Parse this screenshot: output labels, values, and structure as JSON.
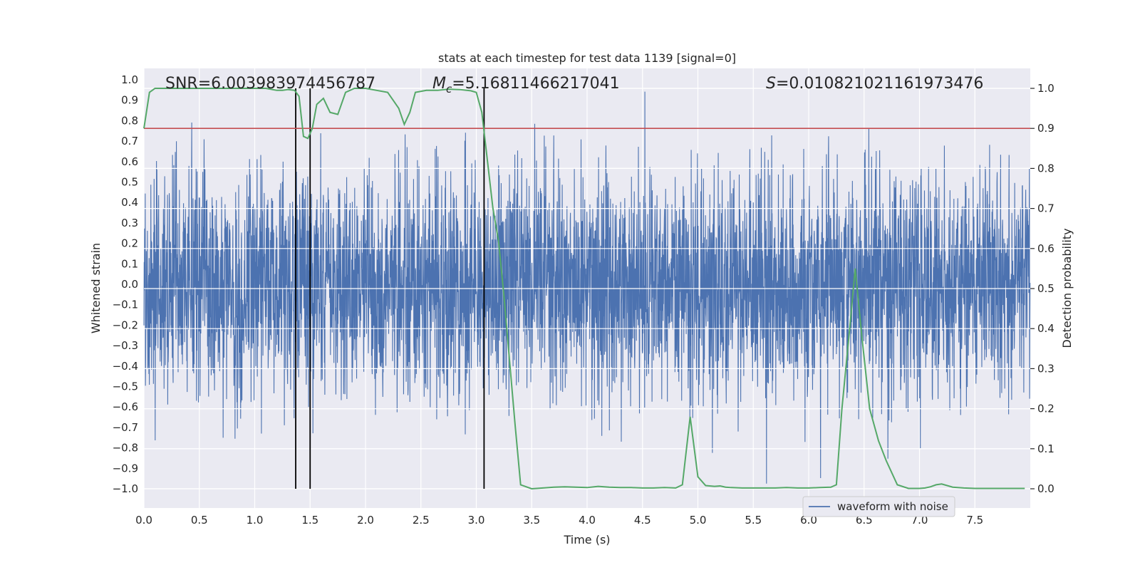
{
  "chart_data": {
    "type": "line",
    "title": "stats at each timestep for test data 1139 [signal=0]",
    "xlabel": "Time (s)",
    "ylabel_left": "Whitened strain",
    "ylabel_right": "Detection probability",
    "xlim": [
      0.0,
      8.0
    ],
    "ylim_left": [
      -1.0,
      1.0
    ],
    "ylim_right": [
      0.0,
      1.0
    ],
    "xticks": [
      "0.0",
      "0.5",
      "1.0",
      "1.5",
      "2.0",
      "2.5",
      "3.0",
      "3.5",
      "4.0",
      "4.5",
      "5.0",
      "5.5",
      "6.0",
      "6.5",
      "7.0",
      "7.5"
    ],
    "yticks_left": [
      "1.0",
      "0.9",
      "0.8",
      "0.7",
      "0.6",
      "0.5",
      "0.4",
      "0.3",
      "0.2",
      "0.1",
      "0.0",
      "-0.1",
      "-0.2",
      "-0.3",
      "-0.4",
      "-0.5",
      "-0.6",
      "-0.7",
      "-0.8",
      "-0.9",
      "-1.0"
    ],
    "yticks_right": [
      "1.0",
      "0.9",
      "0.8",
      "0.7",
      "0.6",
      "0.5",
      "0.4",
      "0.3",
      "0.2",
      "0.1",
      "0.0"
    ],
    "annotations": {
      "snr_label": "SNR=6.003983974456787",
      "mc_label_prefix": "M",
      "mc_label_sub": "c",
      "mc_label_value": "=5.16811466217041",
      "s_label_prefix": "S",
      "s_label_value": "=0.010821021161973476"
    },
    "threshold": {
      "value": 0.9,
      "axis": "right",
      "color": "#c44e52"
    },
    "vertical_markers": [
      1.37,
      1.5,
      3.07
    ],
    "series": [
      {
        "name": "waveform with noise",
        "axis": "left",
        "color": "#4c72b0",
        "kind": "noise",
        "duration": 8.0,
        "samples": 4096,
        "sigma": 0.27,
        "clip": 1.0
      },
      {
        "name": "detection probability",
        "axis": "right",
        "color": "#55a868",
        "x": [
          0.0,
          0.05,
          0.1,
          0.15,
          0.2,
          0.3,
          0.4,
          0.5,
          0.6,
          0.7,
          0.8,
          0.9,
          1.0,
          1.1,
          1.2,
          1.25,
          1.3,
          1.36,
          1.4,
          1.44,
          1.48,
          1.52,
          1.56,
          1.62,
          1.68,
          1.75,
          1.82,
          1.9,
          2.0,
          2.1,
          2.2,
          2.25,
          2.3,
          2.35,
          2.4,
          2.45,
          2.55,
          2.65,
          2.75,
          2.85,
          2.95,
          3.0,
          3.05,
          3.1,
          3.15,
          3.2,
          3.25,
          3.3,
          3.35,
          3.4,
          3.5,
          3.6,
          3.7,
          3.8,
          3.9,
          4.0,
          4.1,
          4.2,
          4.3,
          4.4,
          4.5,
          4.6,
          4.7,
          4.8,
          4.86,
          4.93,
          5.0,
          5.07,
          5.15,
          5.2,
          5.25,
          5.3,
          5.4,
          5.5,
          5.6,
          5.7,
          5.8,
          5.9,
          6.0,
          6.1,
          6.2,
          6.25,
          6.3,
          6.37,
          6.42,
          6.48,
          6.55,
          6.63,
          6.7,
          6.8,
          6.9,
          7.0,
          7.05,
          7.1,
          7.15,
          7.2,
          7.3,
          7.4,
          7.5,
          7.6,
          7.7,
          7.8,
          7.9,
          7.95
        ],
        "values": [
          0.9,
          0.99,
          1.0,
          1.0,
          1.0,
          1.0,
          1.0,
          1.0,
          1.0,
          1.0,
          1.0,
          1.0,
          1.0,
          1.0,
          0.995,
          0.995,
          0.997,
          0.995,
          0.98,
          0.88,
          0.875,
          0.9,
          0.96,
          0.975,
          0.94,
          0.935,
          0.99,
          1.0,
          1.0,
          0.995,
          0.99,
          0.97,
          0.95,
          0.91,
          0.94,
          0.99,
          0.995,
          0.995,
          0.998,
          0.997,
          0.994,
          0.99,
          0.94,
          0.82,
          0.7,
          0.62,
          0.48,
          0.32,
          0.16,
          0.01,
          0.0,
          0.002,
          0.004,
          0.005,
          0.004,
          0.003,
          0.006,
          0.004,
          0.003,
          0.003,
          0.002,
          0.002,
          0.003,
          0.002,
          0.01,
          0.18,
          0.03,
          0.008,
          0.006,
          0.007,
          0.004,
          0.003,
          0.002,
          0.002,
          0.002,
          0.002,
          0.003,
          0.002,
          0.002,
          0.003,
          0.004,
          0.01,
          0.2,
          0.4,
          0.55,
          0.38,
          0.2,
          0.12,
          0.07,
          0.01,
          0.001,
          0.001,
          0.002,
          0.005,
          0.01,
          0.012,
          0.004,
          0.002,
          0.001,
          0.001,
          0.001,
          0.001,
          0.001,
          0.001
        ]
      }
    ],
    "legend": {
      "label": "waveform with noise",
      "placement": "lower-right"
    }
  }
}
